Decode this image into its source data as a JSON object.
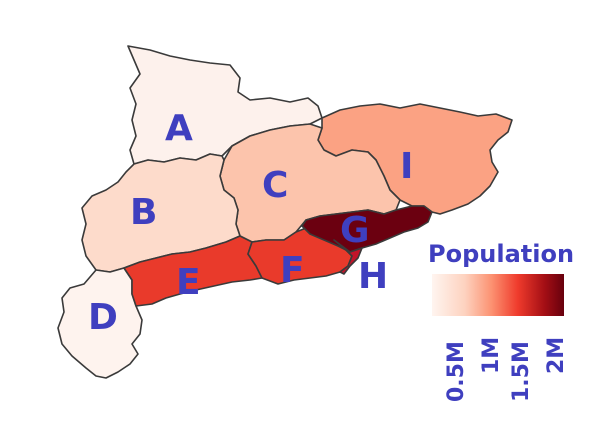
{
  "map": {
    "regions": [
      {
        "id": "A",
        "label": "A",
        "color": "#fdf1ec"
      },
      {
        "id": "B",
        "label": "B",
        "color": "#fddbcb"
      },
      {
        "id": "C",
        "label": "C",
        "color": "#fcc4ac"
      },
      {
        "id": "D",
        "label": "D",
        "color": "#fef3ee"
      },
      {
        "id": "E",
        "label": "E",
        "color": "#fca98a"
      },
      {
        "id": "F",
        "label": "F",
        "color": "#e93a2b"
      },
      {
        "id": "G",
        "label": "G",
        "color": "#6b0010"
      },
      {
        "id": "H",
        "label": "H",
        "color": "#c2142a"
      },
      {
        "id": "I",
        "label": "I",
        "color": "#fba283"
      }
    ]
  },
  "legend": {
    "title": "Population",
    "ticks": [
      "0.5M",
      "1M",
      "1.5M",
      "2M"
    ],
    "color_stops": [
      "#fff5f0",
      "#fdd2bf",
      "#fc9272",
      "#ef3b2c",
      "#a50f15",
      "#67000d"
    ]
  }
}
